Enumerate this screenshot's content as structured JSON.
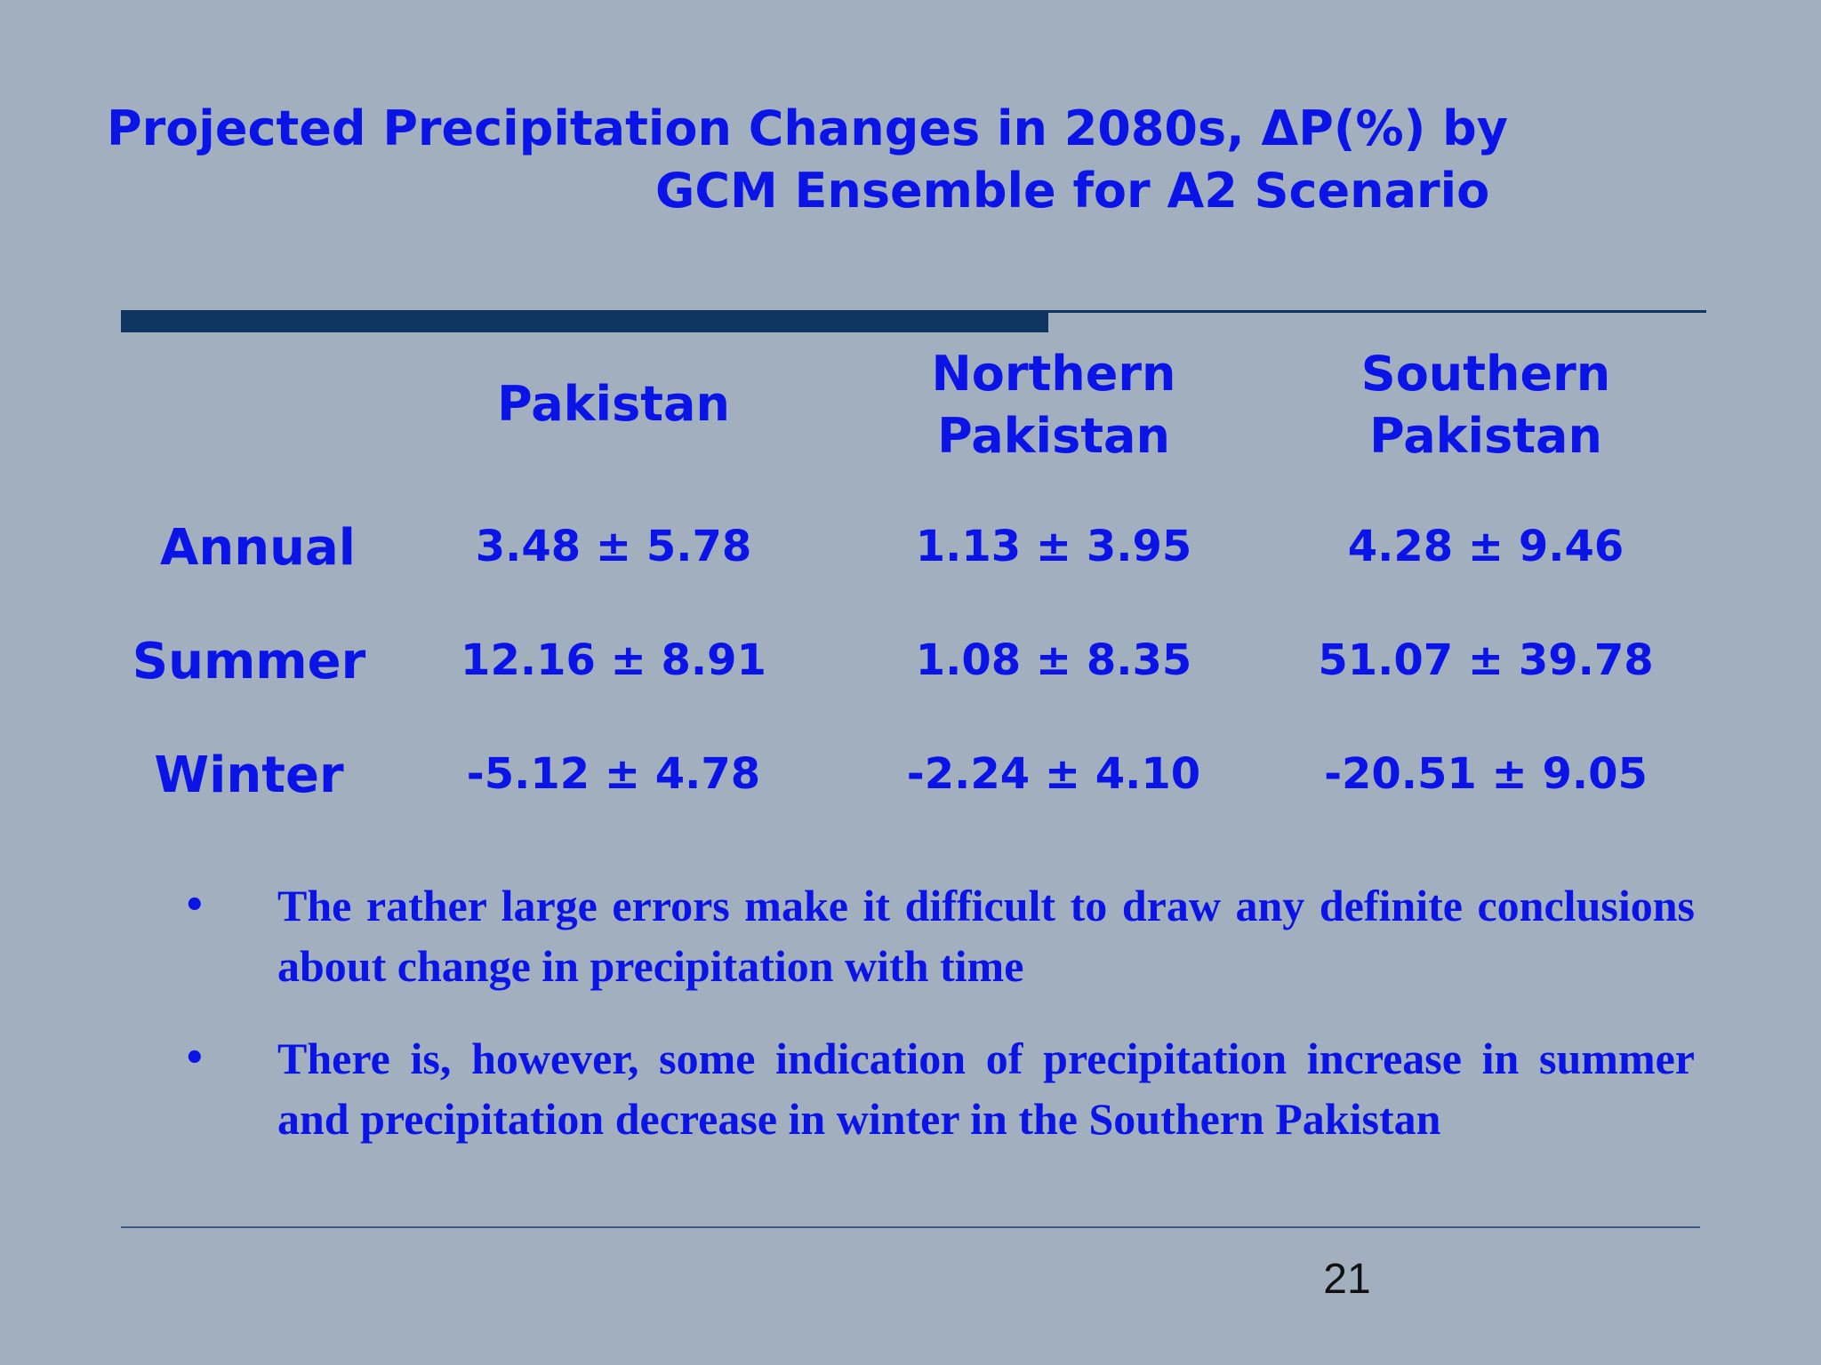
{
  "title": {
    "line1": "Projected Precipitation Changes in 2080s, ΔP(%) by",
    "line2": "GCM Ensemble for A2 Scenario"
  },
  "table": {
    "columns": [
      {
        "line1": "Pakistan",
        "line2": ""
      },
      {
        "line1": "Northern",
        "line2": "Pakistan"
      },
      {
        "line1": "Southern",
        "line2": "Pakistan"
      }
    ],
    "rows": [
      {
        "label": "Annual",
        "values": [
          "3.48 ± 5.78",
          "1.13 ± 3.95",
          "4.28 ± 9.46"
        ]
      },
      {
        "label": "Summer",
        "values": [
          "12.16 ± 8.91",
          "1.08 ± 8.35",
          "51.07 ± 39.78"
        ]
      },
      {
        "label": "Winter",
        "values": [
          "-5.12 ± 4.78",
          "-2.24 ± 4.10",
          "-20.51 ± 9.05"
        ]
      }
    ]
  },
  "bullets": [
    {
      "text": "The rather large errors make it difficult to draw any definite conclusions about change in precipitation with time"
    },
    {
      "text": "There is, however, some indication of precipitation increase in summer and precipitation decrease in winter in the Southern Pakistan"
    }
  ],
  "bullet_symbol": "•",
  "page_number": "21",
  "colors": {
    "background": "#a2afbf",
    "text": "#0a14e6",
    "rule": "#0f3561"
  }
}
